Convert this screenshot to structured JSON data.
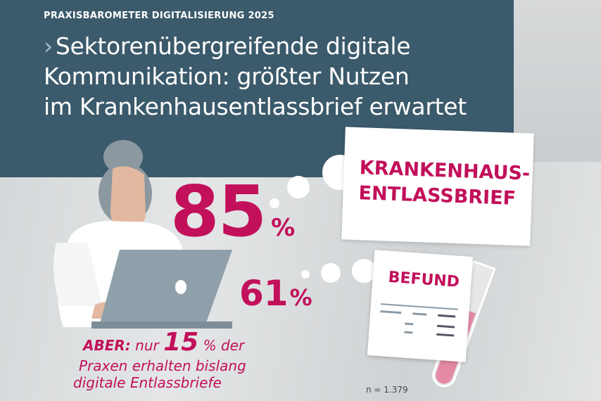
{
  "header": {
    "kicker": "PRAXISBAROMETER DIGITALISIERUNG 2025",
    "title_line1": "Sektorenübergreifende digitale",
    "title_line2": "Kommunikation: größter Nutzen",
    "title_line3": "im Krankenhausentlassbrief erwartet"
  },
  "stats": [
    {
      "value": "85",
      "unit": "%",
      "label_line1": "KRANKENHAUS-",
      "label_line2": "ENTLASSBRIEF"
    },
    {
      "value": "61",
      "unit": "%",
      "label": "BEFUND"
    }
  ],
  "note": {
    "emph": "ABER:",
    "pre": "nur",
    "value": "15",
    "unit": "%",
    "post": "der",
    "line2": "Praxen erhalten bislang",
    "line3": "digitale Entlassbriefe"
  },
  "sample": "n = 1.379",
  "colors": {
    "header": "#3b5a6b",
    "accent": "#c2105a"
  },
  "icons": [
    "doctor-with-laptop-illustration",
    "thought-bubble",
    "test-tube"
  ]
}
